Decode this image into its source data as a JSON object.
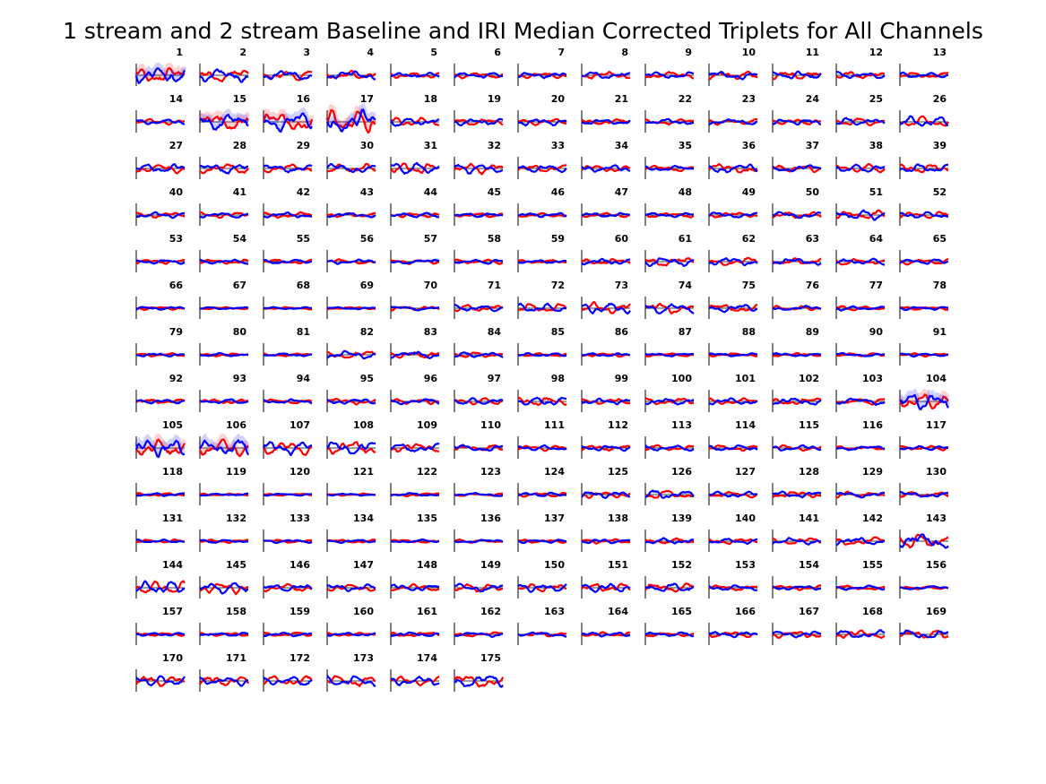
{
  "chart_data": {
    "type": "line",
    "title": "1 stream and 2 stream Baseline and IRI Median Corrected Triplets for All Channels",
    "layout": "small-multiples",
    "grid_columns": 13,
    "panel_labels": [
      "1",
      "2",
      "3",
      "4",
      "5",
      "6",
      "7",
      "8",
      "9",
      "10",
      "11",
      "12",
      "13",
      "14",
      "15",
      "16",
      "17",
      "18",
      "19",
      "20",
      "21",
      "22",
      "23",
      "24",
      "25",
      "26",
      "27",
      "28",
      "29",
      "30",
      "31",
      "32",
      "33",
      "34",
      "35",
      "36",
      "37",
      "38",
      "39",
      "40",
      "41",
      "42",
      "43",
      "44",
      "45",
      "46",
      "47",
      "48",
      "49",
      "50",
      "51",
      "52",
      "53",
      "54",
      "55",
      "56",
      "57",
      "58",
      "59",
      "60",
      "61",
      "62",
      "63",
      "64",
      "65",
      "66",
      "67",
      "68",
      "69",
      "70",
      "71",
      "72",
      "73",
      "74",
      "75",
      "76",
      "77",
      "78",
      "79",
      "80",
      "81",
      "82",
      "83",
      "84",
      "85",
      "86",
      "87",
      "88",
      "89",
      "90",
      "91",
      "92",
      "93",
      "94",
      "95",
      "96",
      "97",
      "98",
      "99",
      "100",
      "101",
      "102",
      "103",
      "104",
      "105",
      "106",
      "107",
      "108",
      "109",
      "110",
      "111",
      "112",
      "113",
      "114",
      "115",
      "116",
      "117",
      "118",
      "119",
      "120",
      "121",
      "122",
      "123",
      "124",
      "125",
      "126",
      "127",
      "128",
      "129",
      "130",
      "131",
      "132",
      "133",
      "134",
      "135",
      "136",
      "137",
      "138",
      "139",
      "140",
      "141",
      "142",
      "143",
      "144",
      "145",
      "146",
      "147",
      "148",
      "149",
      "150",
      "151",
      "152",
      "153",
      "154",
      "155",
      "156",
      "157",
      "158",
      "159",
      "160",
      "161",
      "162",
      "163",
      "164",
      "165",
      "166",
      "167",
      "168",
      "169",
      "170",
      "171",
      "172",
      "173",
      "174",
      "175"
    ],
    "series_colors": [
      "#ff0000",
      "#0000ff"
    ],
    "amplitude": [
      1.4,
      1.2,
      0.9,
      0.8,
      0.5,
      0.5,
      0.5,
      0.6,
      0.6,
      0.7,
      0.7,
      0.6,
      0.5,
      0.5,
      1.5,
      1.8,
      2.0,
      0.8,
      0.6,
      0.6,
      0.5,
      0.5,
      0.5,
      0.5,
      0.7,
      1.0,
      0.8,
      0.9,
      0.7,
      0.8,
      1.0,
      0.9,
      0.7,
      0.6,
      0.5,
      0.8,
      0.6,
      0.7,
      0.8,
      0.5,
      0.5,
      0.5,
      0.4,
      0.4,
      0.4,
      0.4,
      0.4,
      0.4,
      0.5,
      0.6,
      0.9,
      0.6,
      0.4,
      0.4,
      0.4,
      0.4,
      0.4,
      0.4,
      0.3,
      0.5,
      0.8,
      0.7,
      0.6,
      0.6,
      0.5,
      0.3,
      0.2,
      0.2,
      0.2,
      0.4,
      0.6,
      0.8,
      1.0,
      1.0,
      0.7,
      0.4,
      0.4,
      0.3,
      0.3,
      0.3,
      0.3,
      0.7,
      0.6,
      0.5,
      0.3,
      0.3,
      0.3,
      0.3,
      0.3,
      0.3,
      0.3,
      0.4,
      0.4,
      0.4,
      0.5,
      0.5,
      0.6,
      0.8,
      0.5,
      0.6,
      0.6,
      0.6,
      0.6,
      1.5,
      1.6,
      1.5,
      1.2,
      1.2,
      0.8,
      0.6,
      0.5,
      0.5,
      0.5,
      0.5,
      0.5,
      0.4,
      0.4,
      0.3,
      0.2,
      0.2,
      0.2,
      0.3,
      0.3,
      0.4,
      0.6,
      0.8,
      0.5,
      0.6,
      0.5,
      0.5,
      0.3,
      0.3,
      0.3,
      0.3,
      0.3,
      0.3,
      0.3,
      0.4,
      0.5,
      0.5,
      0.6,
      0.7,
      1.3,
      1.2,
      1.0,
      0.7,
      0.6,
      0.6,
      0.7,
      0.7,
      0.8,
      0.8,
      0.5,
      0.4,
      0.4,
      0.3,
      0.3,
      0.3,
      0.4,
      0.3,
      0.4,
      0.4,
      0.4,
      0.4,
      0.4,
      0.5,
      0.6,
      0.7,
      0.8,
      1.0,
      0.9,
      0.9,
      1.0,
      0.8,
      1.2
    ],
    "xlim": [
      0,
      1
    ],
    "ylim": [
      -2,
      2
    ],
    "samples_per_trace": 40
  }
}
